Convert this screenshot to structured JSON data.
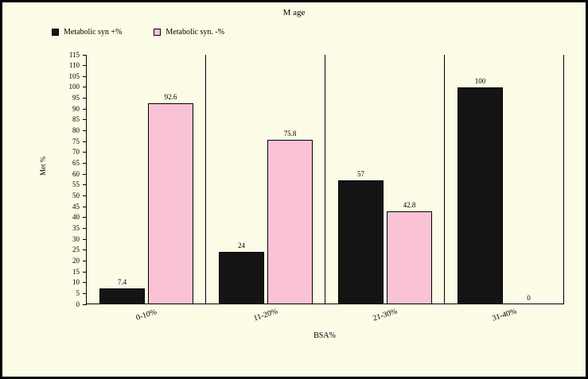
{
  "chart_data": {
    "type": "bar",
    "title": "M age",
    "categories": [
      "0-10%",
      "11-20%",
      "21-30%",
      "31-40%"
    ],
    "series": [
      {
        "name": "Metabolic syn +%",
        "color": "#141414",
        "values": [
          7.4,
          24,
          57,
          100
        ]
      },
      {
        "name": "Metabolic syn. -%",
        "color": "#f9c3d5",
        "values": [
          92.6,
          75.8,
          42.8,
          0
        ]
      }
    ],
    "bar_labels": [
      [
        "7.4",
        "92.6"
      ],
      [
        "24",
        "75.8"
      ],
      [
        "57",
        "42.8"
      ],
      [
        "100",
        "0"
      ]
    ],
    "xlabel": "BSA%",
    "ylabel": "Met %",
    "ylim": [
      0,
      115
    ],
    "ytick_step": 5,
    "grid": "vertical-category-separators-only",
    "legend_position": "top-left"
  },
  "colors": {
    "background": "#fbfbe6",
    "frame_border": "#000000",
    "bar_positive": "#141414",
    "bar_negative": "#f9c3d5",
    "axis": "#000000"
  }
}
